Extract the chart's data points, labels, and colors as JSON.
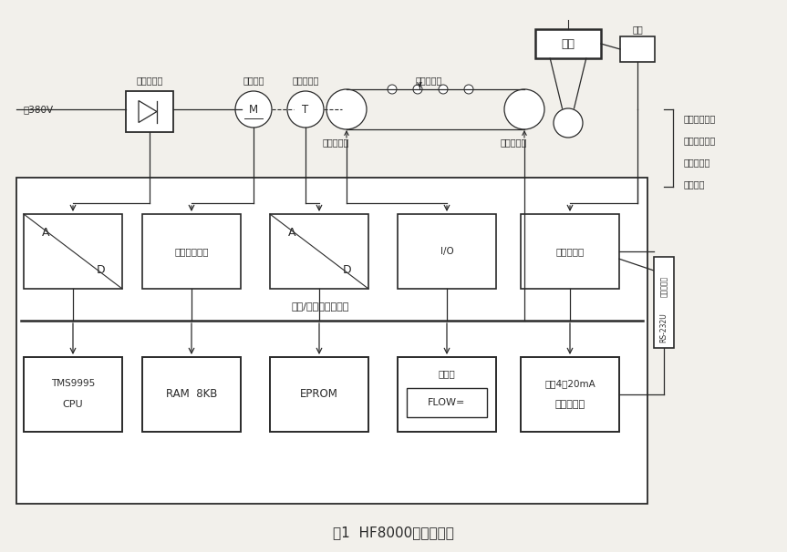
{
  "title": "图1  HF8000硬件构成图",
  "bg": "#f2f0eb",
  "lc": "#2a2a2a",
  "figsize": [
    8.63,
    6.06
  ],
  "dpi": 100,
  "right_labels": [
    "皮带运转信号",
    "皮带限位开关",
    "总报警信号",
    "联锁信号"
  ],
  "bus_label": "数据/地址总线＋电源",
  "voltage_label": "～380V",
  "speed_ctrl_label": "速度控制器",
  "dc_motor_label": "直流马达",
  "speed_sensor_label": "速度传感器",
  "load1_label": "荷重传感器",
  "load2_label": "荷重传感器",
  "load3_label": "荷重传感器",
  "inserter_label": "插板",
  "motor_label": "电机",
  "mid_labels": [
    "编码选择开关",
    "I/O",
    "第二扩展板"
  ],
  "rs_labels": [
    "第三扩展板",
    "RS-232U"
  ],
  "bot_labels": [
    "CPU\nTMS9995",
    "RAM  8KB",
    "EPROM",
    "FLOW=\n控制台",
    "第三扩展板\n输出4～20mA"
  ]
}
